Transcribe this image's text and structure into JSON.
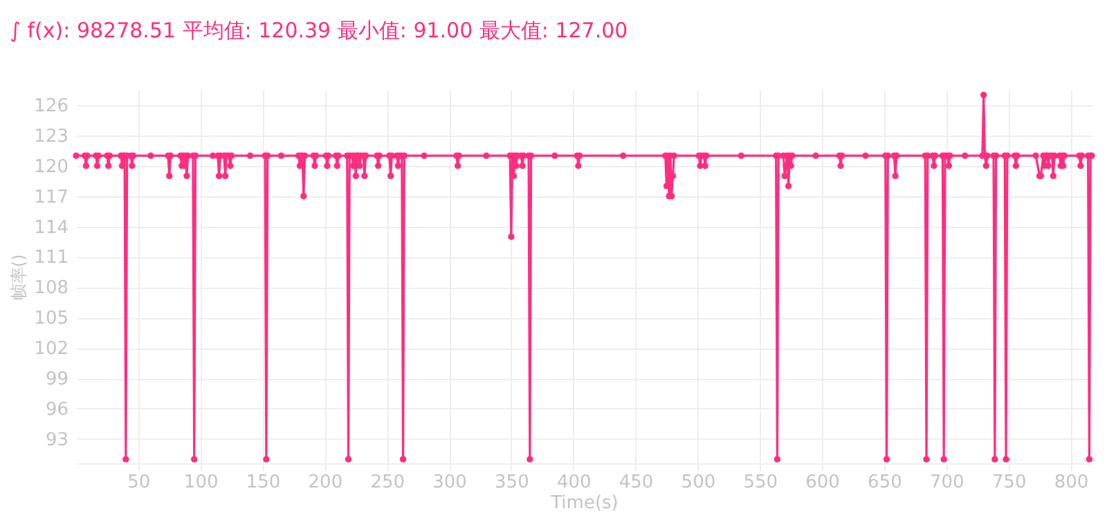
{
  "chart_data": {
    "type": "line",
    "title": "∫ f(x): 98278.51 平均值: 120.39 最小值: 91.00 最大值: 127.00",
    "xlabel": "Time(s)",
    "ylabel": "帧率()",
    "xlim": [
      0,
      817
    ],
    "ylim": [
      90.6,
      127.5
    ],
    "xticks": [
      50,
      100,
      150,
      200,
      250,
      300,
      350,
      400,
      450,
      500,
      550,
      600,
      650,
      700,
      750,
      800
    ],
    "yticks": [
      93,
      96,
      99,
      102,
      105,
      108,
      111,
      114,
      117,
      120,
      123,
      126
    ],
    "grid": true,
    "marker": "circle",
    "line_style": "solid",
    "series": [
      {
        "color": "#ff2d7f",
        "x": [
          0,
          7,
          8,
          9,
          16,
          17,
          18,
          25,
          26,
          27,
          36,
          37,
          38,
          39,
          40,
          41,
          44,
          45,
          46,
          60,
          74,
          75,
          76,
          84,
          85,
          86,
          87,
          88,
          89,
          90,
          94,
          95,
          96,
          110,
          114,
          115,
          116,
          119,
          120,
          121,
          123,
          124,
          125,
          140,
          152,
          153,
          154,
          165,
          179,
          180,
          181,
          182,
          183,
          184,
          191,
          192,
          193,
          201,
          202,
          203,
          209,
          210,
          211,
          218,
          219,
          220,
          222,
          223,
          224,
          225,
          226,
          227,
          228,
          229,
          231,
          232,
          233,
          242,
          243,
          244,
          252,
          253,
          254,
          258,
          259,
          260,
          262,
          263,
          264,
          280,
          306,
          307,
          308,
          330,
          349,
          350,
          351,
          352,
          353,
          354,
          355,
          358,
          359,
          360,
          364,
          365,
          366,
          385,
          403,
          404,
          405,
          440,
          474,
          475,
          476,
          477,
          478,
          479,
          480,
          481,
          501,
          502,
          503,
          505,
          506,
          507,
          535,
          563,
          564,
          565,
          569,
          570,
          571,
          572,
          573,
          574,
          575,
          576,
          595,
          614,
          615,
          616,
          635,
          651,
          652,
          653,
          658,
          659,
          660,
          683,
          684,
          685,
          689,
          690,
          691,
          697,
          698,
          699,
          701,
          702,
          703,
          715,
          729,
          730,
          731,
          732,
          733,
          738,
          739,
          740,
          747,
          748,
          749,
          755,
          756,
          757,
          772,
          775,
          776,
          778,
          779,
          780,
          781,
          782,
          783,
          785,
          786,
          787,
          791,
          792,
          793,
          794,
          795,
          807,
          808,
          809,
          814,
          815,
          816,
          817
        ],
        "values": [
          121,
          121,
          120,
          121,
          121,
          120,
          121,
          121,
          120,
          121,
          121,
          120,
          121,
          121,
          91,
          121,
          121,
          120,
          121,
          121,
          121,
          119,
          121,
          121,
          120,
          121,
          120,
          121,
          119,
          121,
          121,
          91,
          121,
          121,
          121,
          119,
          121,
          121,
          119,
          121,
          121,
          120,
          121,
          121,
          121,
          91,
          121,
          121,
          121,
          120,
          121,
          121,
          117,
          121,
          121,
          120,
          121,
          121,
          120,
          121,
          121,
          120,
          121,
          121,
          91,
          121,
          121,
          120,
          121,
          119,
          121,
          121,
          120,
          121,
          121,
          119,
          121,
          121,
          120,
          121,
          121,
          119,
          121,
          121,
          120,
          121,
          121,
          91,
          121,
          121,
          121,
          120,
          121,
          121,
          121,
          113,
          121,
          119,
          121,
          120,
          121,
          121,
          120,
          121,
          121,
          91,
          121,
          121,
          121,
          120,
          121,
          121,
          121,
          118,
          121,
          117,
          121,
          117,
          119,
          121,
          121,
          120,
          121,
          121,
          120,
          121,
          121,
          121,
          91,
          121,
          121,
          119,
          120,
          121,
          118,
          121,
          120,
          121,
          121,
          121,
          120,
          121,
          121,
          121,
          91,
          121,
          121,
          119,
          121,
          121,
          91,
          121,
          121,
          120,
          121,
          121,
          91,
          121,
          121,
          120,
          121,
          121,
          121,
          127,
          121,
          120,
          121,
          121,
          91,
          121,
          121,
          91,
          121,
          121,
          120,
          121,
          121,
          119,
          119,
          121,
          120,
          121,
          121,
          120,
          121,
          121,
          119,
          121,
          121,
          120,
          121,
          120,
          121,
          121,
          120,
          121,
          121,
          91,
          121,
          121
        ]
      }
    ]
  }
}
